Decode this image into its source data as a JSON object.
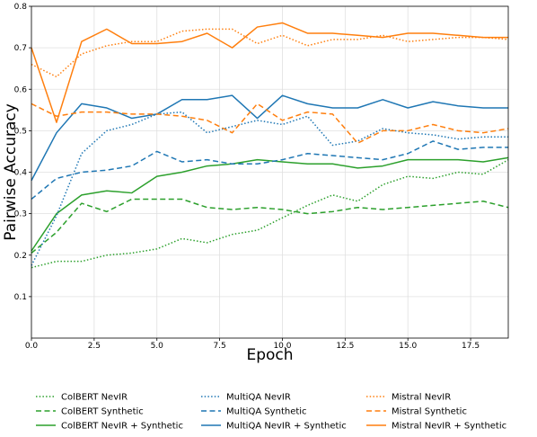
{
  "chart_data": {
    "type": "line",
    "title": "",
    "xlabel": "Epoch",
    "ylabel": "Pairwise Accuracy",
    "xlim": [
      0,
      19
    ],
    "ylim": [
      0,
      0.8
    ],
    "xticks": [
      "0.0",
      "2.5",
      "5.0",
      "7.5",
      "10.0",
      "12.5",
      "15.0",
      "17.5"
    ],
    "xtick_values": [
      0,
      2.5,
      5,
      7.5,
      10,
      12.5,
      15,
      17.5
    ],
    "yticks": [
      "0.1",
      "0.2",
      "0.3",
      "0.4",
      "0.5",
      "0.6",
      "0.7",
      "0.8"
    ],
    "ytick_values": [
      0.1,
      0.2,
      0.3,
      0.4,
      0.5,
      0.6,
      0.7,
      0.8
    ],
    "grid": true,
    "legend_position": "bottom",
    "x": [
      0,
      1,
      2,
      3,
      4,
      5,
      6,
      7,
      8,
      9,
      10,
      11,
      12,
      13,
      14,
      15,
      16,
      17,
      18,
      19
    ],
    "series": [
      {
        "name": "ColBERT NevIR",
        "color": "#2ca02c",
        "dash": "dotted",
        "values": [
          0.17,
          0.185,
          0.185,
          0.2,
          0.205,
          0.215,
          0.24,
          0.23,
          0.25,
          0.26,
          0.29,
          0.32,
          0.345,
          0.33,
          0.37,
          0.39,
          0.385,
          0.4,
          0.395,
          0.43
        ]
      },
      {
        "name": "ColBERT Synthetic",
        "color": "#2ca02c",
        "dash": "dashed",
        "values": [
          0.205,
          0.255,
          0.325,
          0.305,
          0.335,
          0.335,
          0.335,
          0.315,
          0.31,
          0.315,
          0.31,
          0.3,
          0.305,
          0.315,
          0.31,
          0.315,
          0.32,
          0.325,
          0.33,
          0.315
        ]
      },
      {
        "name": "ColBERT NevIR + Synthetic",
        "color": "#2ca02c",
        "dash": "solid",
        "values": [
          0.21,
          0.3,
          0.345,
          0.355,
          0.35,
          0.39,
          0.4,
          0.415,
          0.42,
          0.43,
          0.425,
          0.42,
          0.42,
          0.41,
          0.415,
          0.43,
          0.43,
          0.43,
          0.425,
          0.435
        ]
      },
      {
        "name": "MultiQA NevIR",
        "color": "#1f77b4",
        "dash": "dotted",
        "values": [
          0.175,
          0.295,
          0.445,
          0.5,
          0.515,
          0.54,
          0.545,
          0.495,
          0.51,
          0.525,
          0.515,
          0.535,
          0.465,
          0.475,
          0.505,
          0.495,
          0.49,
          0.48,
          0.485,
          0.485
        ]
      },
      {
        "name": "MultiQA Synthetic",
        "color": "#1f77b4",
        "dash": "dashed",
        "values": [
          0.335,
          0.385,
          0.4,
          0.405,
          0.415,
          0.45,
          0.425,
          0.43,
          0.42,
          0.42,
          0.43,
          0.445,
          0.44,
          0.435,
          0.43,
          0.445,
          0.475,
          0.455,
          0.46,
          0.46
        ]
      },
      {
        "name": "MultiQA NevIR + Synthetic",
        "color": "#1f77b4",
        "dash": "solid",
        "values": [
          0.38,
          0.495,
          0.565,
          0.555,
          0.53,
          0.54,
          0.575,
          0.575,
          0.585,
          0.53,
          0.585,
          0.565,
          0.555,
          0.555,
          0.575,
          0.555,
          0.57,
          0.56,
          0.555,
          0.555
        ]
      },
      {
        "name": "Mistral NevIR",
        "color": "#ff7f0e",
        "dash": "dotted",
        "values": [
          0.66,
          0.63,
          0.685,
          0.705,
          0.715,
          0.715,
          0.74,
          0.745,
          0.745,
          0.71,
          0.73,
          0.705,
          0.72,
          0.72,
          0.73,
          0.715,
          0.72,
          0.725,
          0.725,
          0.72
        ]
      },
      {
        "name": "Mistral Synthetic",
        "color": "#ff7f0e",
        "dash": "dashed",
        "values": [
          0.565,
          0.535,
          0.545,
          0.545,
          0.54,
          0.54,
          0.535,
          0.525,
          0.495,
          0.565,
          0.525,
          0.545,
          0.54,
          0.47,
          0.5,
          0.5,
          0.515,
          0.5,
          0.495,
          0.505
        ]
      },
      {
        "name": "Mistral NevIR + Synthetic",
        "color": "#ff7f0e",
        "dash": "solid",
        "values": [
          0.7,
          0.52,
          0.715,
          0.745,
          0.71,
          0.71,
          0.715,
          0.735,
          0.7,
          0.75,
          0.76,
          0.735,
          0.735,
          0.73,
          0.725,
          0.735,
          0.735,
          0.73,
          0.725,
          0.725
        ]
      }
    ]
  }
}
